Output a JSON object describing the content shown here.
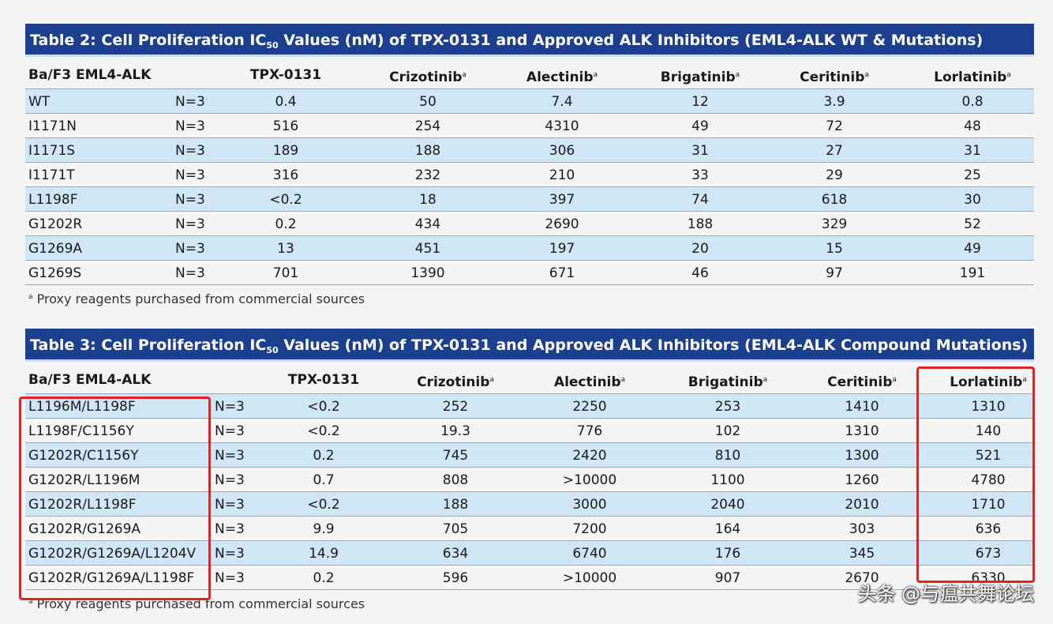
{
  "table2": {
    "title_pre": "Table 2:  Cell Proliferation IC",
    "title_sub": "50",
    "title_post": " Values (nM) of TPX-0131 and Approved ALK Inhibitors (EML4-ALK WT & Mutations)",
    "headers": [
      "Ba/F3 EML4-ALK",
      "TPX-0131",
      "Crizotinib",
      "Alectinib",
      "Brigatinib",
      "Ceritinib",
      "Lorlatinib"
    ],
    "footnote_mark": "a",
    "rows": [
      [
        "WT",
        "N=3",
        "0.4",
        "50",
        "7.4",
        "12",
        "3.9",
        "0.8"
      ],
      [
        "I1171N",
        "N=3",
        "516",
        "254",
        "4310",
        "49",
        "72",
        "48"
      ],
      [
        "I1171S",
        "N=3",
        "189",
        "188",
        "306",
        "31",
        "27",
        "31"
      ],
      [
        "I1171T",
        "N=3",
        "316",
        "232",
        "210",
        "33",
        "29",
        "25"
      ],
      [
        "L1198F",
        "N=3",
        "<0.2",
        "18",
        "397",
        "74",
        "618",
        "30"
      ],
      [
        "G1202R",
        "N=3",
        "0.2",
        "434",
        "2690",
        "188",
        "329",
        "52"
      ],
      [
        "G1269A",
        "N=3",
        "13",
        "451",
        "197",
        "20",
        "15",
        "49"
      ],
      [
        "G1269S",
        "N=3",
        "701",
        "1390",
        "671",
        "46",
        "97",
        "191"
      ]
    ],
    "footnote": "Proxy reagents purchased from commercial sources"
  },
  "table3": {
    "title_pre": "Table 3:  Cell Proliferation IC",
    "title_sub": "50",
    "title_post": " Values (nM) of TPX-0131 and Approved ALK Inhibitors (EML4-ALK Compound Mutations)",
    "headers": [
      "Ba/F3 EML4-ALK",
      "TPX-0131",
      "Crizotinib",
      "Alectinib",
      "Brigatinib",
      "Ceritinib",
      "Lorlatinib"
    ],
    "footnote_mark": "a",
    "rows": [
      [
        "L1196M/L1198F",
        "N=3",
        "<0.2",
        "252",
        "2250",
        "253",
        "1410",
        "1310"
      ],
      [
        "L1198F/C1156Y",
        "N=3",
        "<0.2",
        "19.3",
        "776",
        "102",
        "1310",
        "140"
      ],
      [
        "G1202R/C1156Y",
        "N=3",
        "0.2",
        "745",
        "2420",
        "810",
        "1300",
        "521"
      ],
      [
        "G1202R/L1196M",
        "N=3",
        "0.7",
        "808",
        ">10000",
        "1100",
        "1260",
        "4780"
      ],
      [
        "G1202R/L1198F",
        "N=3",
        "<0.2",
        "188",
        "3000",
        "2040",
        "2010",
        "1710"
      ],
      [
        "G1202R/G1269A",
        "N=3",
        "9.9",
        "705",
        "7200",
        "164",
        "303",
        "636"
      ],
      [
        "G1202R/G1269A/L1204V",
        "N=3",
        "14.9",
        "634",
        "6740",
        "176",
        "345",
        "673"
      ],
      [
        "G1202R/G1269A/L1198F",
        "N=3",
        "0.2",
        "596",
        ">10000",
        "907",
        "2670",
        "6330"
      ]
    ],
    "footnote": "Proxy reagents purchased from commercial sources"
  },
  "watermark": "头条 @与瘟共舞论坛"
}
